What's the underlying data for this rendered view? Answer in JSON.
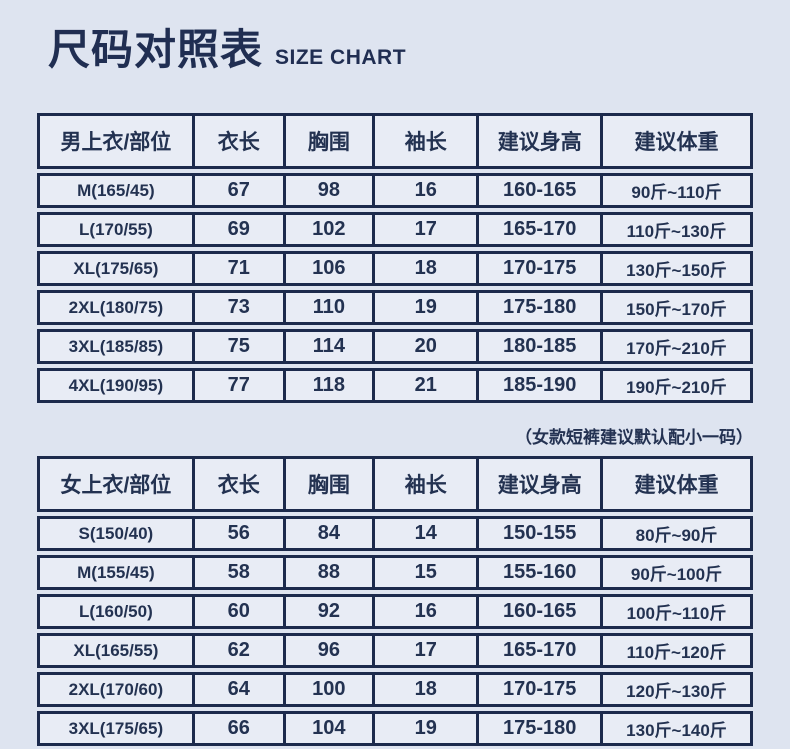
{
  "header": {
    "title": "尺码对照表",
    "subtitle": "SIZE CHART"
  },
  "note": "（女款短裤建议默认配小一码）",
  "colors": {
    "background": "#dee4f0",
    "cell_background": "#e8ecf5",
    "border": "#1c2a4c",
    "text": "#233251"
  },
  "chart_data": [
    {
      "type": "table",
      "title": "男上衣尺码表",
      "columns": [
        "男上衣/部位",
        "衣长",
        "胸围",
        "袖长",
        "建议身高",
        "建议体重"
      ],
      "rows": [
        [
          "M(165/45)",
          "67",
          "98",
          "16",
          "160-165",
          "90斤~110斤"
        ],
        [
          "L(170/55)",
          "69",
          "102",
          "17",
          "165-170",
          "110斤~130斤"
        ],
        [
          "XL(175/65)",
          "71",
          "106",
          "18",
          "170-175",
          "130斤~150斤"
        ],
        [
          "2XL(180/75)",
          "73",
          "110",
          "19",
          "175-180",
          "150斤~170斤"
        ],
        [
          "3XL(185/85)",
          "75",
          "114",
          "20",
          "180-185",
          "170斤~210斤"
        ],
        [
          "4XL(190/95)",
          "77",
          "118",
          "21",
          "185-190",
          "190斤~210斤"
        ]
      ]
    },
    {
      "type": "table",
      "title": "女上衣尺码表",
      "columns": [
        "女上衣/部位",
        "衣长",
        "胸围",
        "袖长",
        "建议身高",
        "建议体重"
      ],
      "rows": [
        [
          "S(150/40)",
          "56",
          "84",
          "14",
          "150-155",
          "80斤~90斤"
        ],
        [
          "M(155/45)",
          "58",
          "88",
          "15",
          "155-160",
          "90斤~100斤"
        ],
        [
          "L(160/50)",
          "60",
          "92",
          "16",
          "160-165",
          "100斤~110斤"
        ],
        [
          "XL(165/55)",
          "62",
          "96",
          "17",
          "165-170",
          "110斤~120斤"
        ],
        [
          "2XL(170/60)",
          "64",
          "100",
          "18",
          "170-175",
          "120斤~130斤"
        ],
        [
          "3XL(175/65)",
          "66",
          "104",
          "19",
          "175-180",
          "130斤~140斤"
        ]
      ]
    }
  ]
}
